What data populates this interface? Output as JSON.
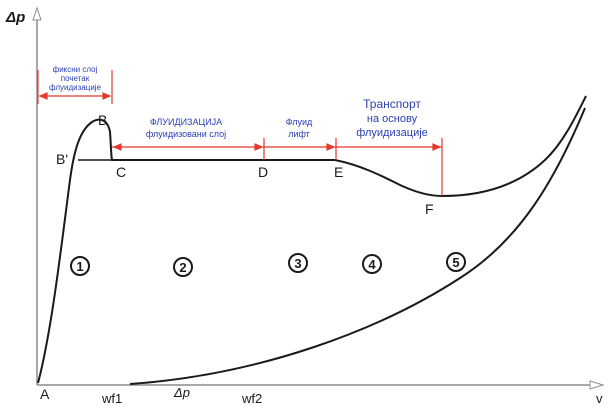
{
  "axes": {
    "y_label": "Δp",
    "x_label": "v"
  },
  "points": {
    "A": "A",
    "B": "B",
    "B_prime": "B'",
    "C": "C",
    "D": "D",
    "E": "E",
    "F": "F"
  },
  "x_marks": {
    "wf1": "wf1",
    "dp": "Δp",
    "wf2": "wf2"
  },
  "regions": {
    "r1_line1": "фиксни слој",
    "r1_line2": "почетак",
    "r1_line3": "флуидизације",
    "r2_line1": "ФЛУИДИЗАЦИЈА",
    "r2_line2": "флуидизовани слој",
    "r3_line1": "Флуид",
    "r3_line2": "лифт",
    "r4_line1": "Транспорт",
    "r4_line2": "на основу",
    "r4_line3": "флуидизације"
  },
  "numbers": {
    "n1": "1",
    "n2": "2",
    "n3": "3",
    "n4": "4",
    "n5": "5"
  },
  "colors": {
    "curve": "#1a1a1a",
    "region_marker": "#e5392e",
    "region_text": "#2a3fb0",
    "axis": "#8c8c8c"
  }
}
